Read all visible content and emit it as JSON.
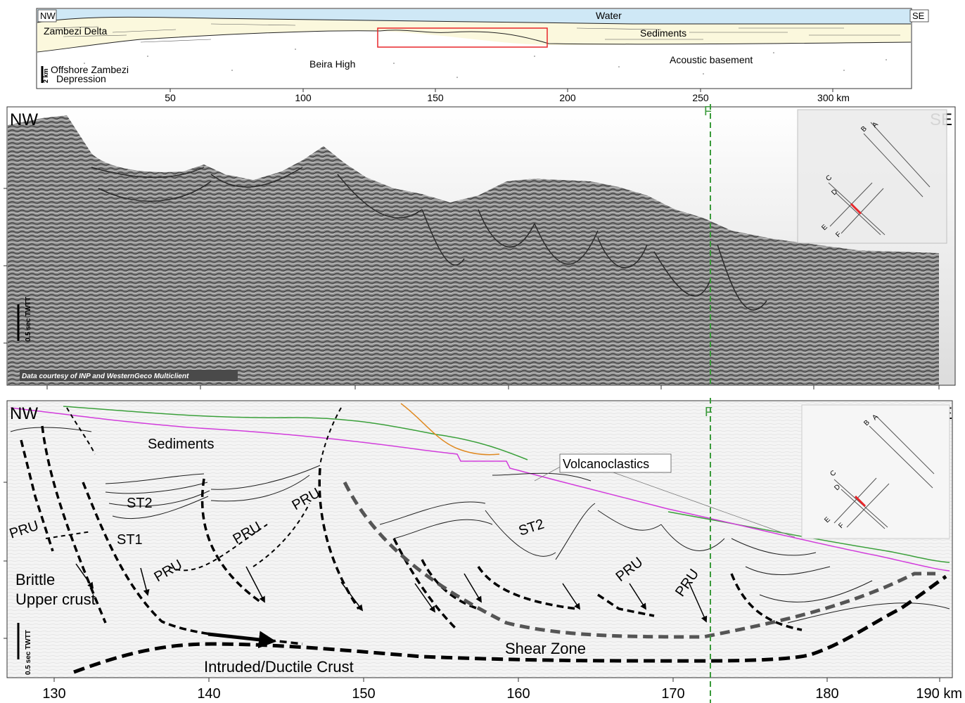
{
  "overview": {
    "corner_left": "NW",
    "corner_right": "SE",
    "labels": {
      "water": "Water",
      "zambezi_delta": "Zambezi Delta",
      "sediments": "Sediments",
      "beira_high": "Beira High",
      "acoustic_basement": "Acoustic basement",
      "offshore_line1": "Offshore Zambezi",
      "offshore_line2": "Depression",
      "scale": "2 km"
    },
    "axis_ticks": [
      "50",
      "100",
      "150",
      "200",
      "250",
      "300 km"
    ]
  },
  "seismic": {
    "corner_left": "NW",
    "corner_right": "SE",
    "well_label": "F",
    "scale_label": "0.5 sec TWTT",
    "credit": "Data courtesy of INP and WesternGeco Multiclient",
    "inset": {
      "lines": [
        "A",
        "B",
        "C",
        "D",
        "E",
        "F"
      ]
    }
  },
  "interp": {
    "corner_left": "NW",
    "corner_right": "SE",
    "well_label": "F",
    "scale_label": "0.5 sec TWTT",
    "labels": {
      "sediments": "Sediments",
      "volcanoclastics": "Volcanoclastics",
      "st2_left": "ST2",
      "st1": "ST1",
      "st2_right": "ST2",
      "pru_1": "PRU",
      "pru_2": "PRU",
      "pru_3": "PRU",
      "pru_4": "PRU",
      "pru_5": "PRU",
      "pru_6": "PRU",
      "brittle_line1": "Brittle",
      "brittle_line2": "Upper crust",
      "shear_zone": "Shear Zone",
      "intruded": "Intruded/Ductile Crust"
    },
    "axis_ticks": [
      "130",
      "140",
      "150",
      "160",
      "170",
      "180",
      "190 km"
    ],
    "inset": {
      "lines": [
        "A",
        "B",
        "C",
        "D",
        "E",
        "F"
      ]
    }
  },
  "colors": {
    "water": "#cfe8f6",
    "sediment": "#fbf8dd",
    "highlight_box": "#e8262a",
    "well_line": "#3a9a3a",
    "magenta_horizon": "#d23cdc",
    "green_horizon": "#3aa03a",
    "orange_horizon": "#e08a22"
  }
}
